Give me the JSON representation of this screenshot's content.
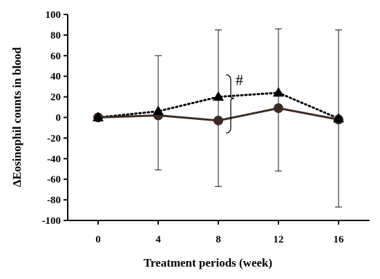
{
  "chart_data": {
    "type": "line",
    "xlabel": "Treatment periods (week)",
    "ylabel": "ΔEosinophil counts in blood",
    "x": [
      0,
      4,
      8,
      12,
      16
    ],
    "x_tick_labels": [
      "0",
      "4",
      "8",
      "12",
      "16"
    ],
    "ylim": [
      -100,
      100
    ],
    "y_ticks": [
      -100,
      -80,
      -60,
      -40,
      -20,
      0,
      20,
      40,
      60,
      80,
      100
    ],
    "y_tick_labels": [
      "-100",
      "-80",
      "-60",
      "-40",
      "-20",
      "0",
      "20",
      "40",
      "60",
      "80",
      "100"
    ],
    "grid": false,
    "series": [
      {
        "marker": "triangle",
        "line_style": "dotted",
        "color": "#000000",
        "values": [
          0,
          6,
          20,
          24,
          -1
        ],
        "error_upper": [
          0,
          60,
          85,
          86,
          85
        ],
        "error_lower": [
          0,
          -51,
          -67,
          -52,
          -87
        ]
      },
      {
        "marker": "circle",
        "line_style": "solid",
        "color": "#3b2a26",
        "values": [
          0,
          2,
          -3,
          9,
          -2
        ]
      }
    ],
    "annotations": [
      {
        "text": "#",
        "between_series_at_x": 8
      }
    ]
  }
}
